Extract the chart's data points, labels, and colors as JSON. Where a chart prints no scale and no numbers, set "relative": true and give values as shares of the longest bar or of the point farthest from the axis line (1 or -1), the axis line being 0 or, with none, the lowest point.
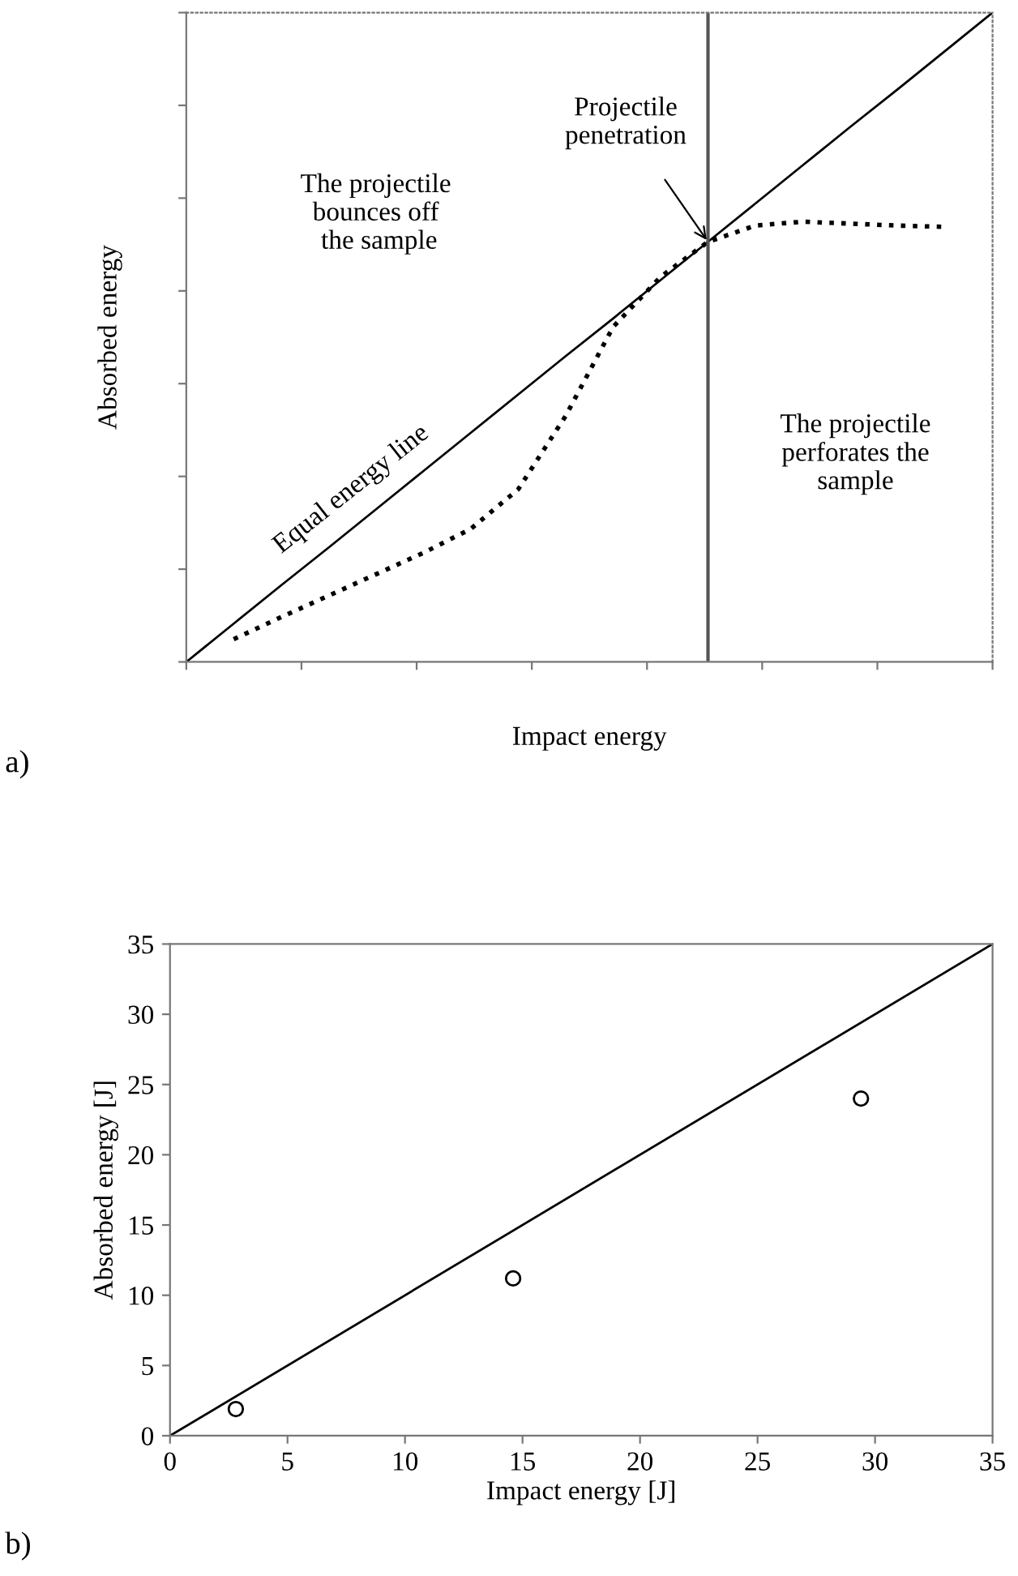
{
  "chart_data": [
    {
      "type": "line",
      "relative": true,
      "xlabel": "Impact energy",
      "ylabel": "Absorbed energy",
      "categories": [
        null,
        null,
        null,
        null,
        null,
        null,
        null,
        null,
        null,
        null,
        null,
        null,
        null,
        null,
        null,
        null,
        null,
        null
      ],
      "series": [
        {
          "line_style": "solid",
          "color": "#000000",
          "values": [
            0,
            0.059,
            0.118,
            0.176,
            0.235,
            0.294,
            0.353,
            0.412,
            0.471,
            0.529,
            0.588,
            0.647,
            0.706,
            0.765,
            0.824,
            0.882,
            0.941,
            1
          ]
        },
        {
          "line_style": "dotted",
          "color": "#000000",
          "values": [
            null,
            0.035,
            0.069,
            0.102,
            0.135,
            0.168,
            0.205,
            0.266,
            0.379,
            0.516,
            0.593,
            0.647,
            0.672,
            0.678,
            0.675,
            0.672,
            0.67,
            null
          ]
        }
      ],
      "annotations": [
        "Projectile\npenetration",
        "The projectile\nbounces off\n the sample",
        "Equal energy line",
        "The projectile\nperforates the\nsample",
        "a)"
      ],
      "tick_labels": false
    },
    {
      "type": "scatter",
      "xlabel": "Impact energy [J]",
      "ylabel": "Absorbed energy [J]",
      "xlim": [
        0,
        35
      ],
      "ylim": [
        0,
        35
      ],
      "xticks": [
        0,
        5,
        10,
        15,
        20,
        25,
        30,
        35
      ],
      "yticks": [
        0,
        5,
        10,
        15,
        20,
        25,
        30,
        35
      ],
      "series": [
        {
          "type": "line",
          "line_style": "solid",
          "color": "#000000",
          "x": [
            0,
            35
          ],
          "values": [
            0,
            35
          ],
          "marker": "none"
        },
        {
          "type": "scatter",
          "color": "#000000",
          "x": [
            2.8,
            14.6,
            29.4
          ],
          "values": [
            1.9,
            11.2,
            24.0
          ],
          "marker": "circle"
        }
      ],
      "annotations": [
        "b)"
      ]
    }
  ]
}
